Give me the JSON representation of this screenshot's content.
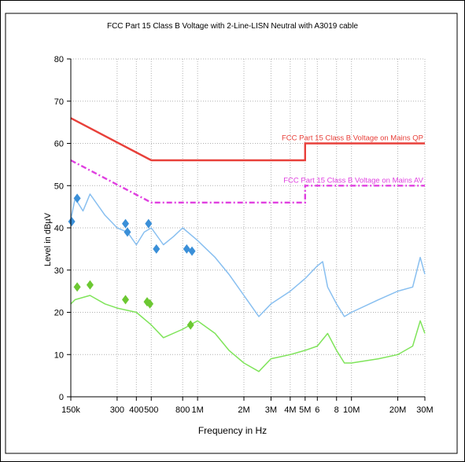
{
  "chart_data": {
    "type": "line",
    "title": "FCC Part 15 Class B Voltage with 2-Line-LISN Neutral with A3019 cable",
    "xlabel": "Frequency in Hz",
    "ylabel": "Level in dBµV",
    "x_scale": "log",
    "xlim": [
      "150k",
      "30M"
    ],
    "ylim": [
      0,
      80
    ],
    "grid": true,
    "x_ticks": [
      "150k",
      "300",
      "400",
      "500",
      "800",
      "1M",
      "2M",
      "3M",
      "4M",
      "5M",
      "6",
      "8",
      "10M",
      "20M",
      "30M"
    ],
    "y_ticks": [
      "0",
      "10",
      "20",
      "30",
      "40",
      "50",
      "60",
      "70",
      "80"
    ],
    "limits": [
      {
        "name": "FCC Part 15 Class B Voltage on Mains QP",
        "color": "#e8403a",
        "style": "solid",
        "points": [
          [
            "150k",
            66
          ],
          [
            "500k",
            56
          ],
          [
            "5M",
            56
          ],
          [
            "5M",
            60
          ],
          [
            "30M",
            60
          ]
        ]
      },
      {
        "name": "FCC Part 15 Class B Voltage on Mains AV",
        "color": "#e040e0",
        "style": "dash-dot",
        "points": [
          [
            "150k",
            56
          ],
          [
            "500k",
            46
          ],
          [
            "5M",
            46
          ],
          [
            "5M",
            50
          ],
          [
            "30M",
            50
          ]
        ]
      }
    ],
    "series": [
      {
        "color": "#88bff0",
        "points": [
          [
            "150k",
            42
          ],
          [
            "160k",
            47
          ],
          [
            "180k",
            44
          ],
          [
            "200k",
            48
          ],
          [
            "250k",
            43
          ],
          [
            "300k",
            40
          ],
          [
            "350k",
            39
          ],
          [
            "400k",
            36
          ],
          [
            "450k",
            39
          ],
          [
            "500k",
            40
          ],
          [
            "600k",
            36
          ],
          [
            "700k",
            38
          ],
          [
            "800k",
            40
          ],
          [
            "1M",
            37
          ],
          [
            "1.3M",
            33
          ],
          [
            "1.6M",
            29
          ],
          [
            "2M",
            24
          ],
          [
            "2.5M",
            19
          ],
          [
            "3M",
            22
          ],
          [
            "4M",
            25
          ],
          [
            "5M",
            28
          ],
          [
            "6M",
            31
          ],
          [
            "6.5M",
            32
          ],
          [
            "7M",
            26
          ],
          [
            "8M",
            22
          ],
          [
            "9M",
            19
          ],
          [
            "10M",
            20
          ],
          [
            "15M",
            23
          ],
          [
            "20M",
            25
          ],
          [
            "25M",
            26
          ],
          [
            "28M",
            33
          ],
          [
            "30M",
            29
          ]
        ]
      },
      {
        "color": "#7fe45a",
        "points": [
          [
            "150k",
            22
          ],
          [
            "160k",
            23
          ],
          [
            "200k",
            24
          ],
          [
            "250k",
            22
          ],
          [
            "300k",
            21
          ],
          [
            "400k",
            20
          ],
          [
            "500k",
            17
          ],
          [
            "600k",
            14
          ],
          [
            "800k",
            16
          ],
          [
            "1M",
            18
          ],
          [
            "1.3M",
            15
          ],
          [
            "1.6M",
            11
          ],
          [
            "2M",
            8
          ],
          [
            "2.5M",
            6
          ],
          [
            "3M",
            9
          ],
          [
            "4M",
            10
          ],
          [
            "5M",
            11
          ],
          [
            "6M",
            12
          ],
          [
            "7M",
            15
          ],
          [
            "8M",
            11
          ],
          [
            "9M",
            8
          ],
          [
            "10M",
            8
          ],
          [
            "15M",
            9
          ],
          [
            "20M",
            10
          ],
          [
            "25M",
            12
          ],
          [
            "28M",
            18
          ],
          [
            "30M",
            15
          ]
        ]
      }
    ],
    "markers": [
      {
        "color": "#3a8fd8",
        "points": [
          [
            "152k",
            41.5
          ],
          [
            "165k",
            47
          ],
          [
            "340k",
            41
          ],
          [
            "350k",
            39
          ],
          [
            "480k",
            41
          ],
          [
            "540k",
            35
          ],
          [
            "850k",
            35
          ],
          [
            "920k",
            34.5
          ]
        ]
      },
      {
        "color": "#6cc832",
        "points": [
          [
            "165k",
            26
          ],
          [
            "200k",
            26.5
          ],
          [
            "340k",
            23
          ],
          [
            "470k",
            22.5
          ],
          [
            "490k",
            22
          ],
          [
            "900k",
            17
          ]
        ]
      }
    ]
  }
}
